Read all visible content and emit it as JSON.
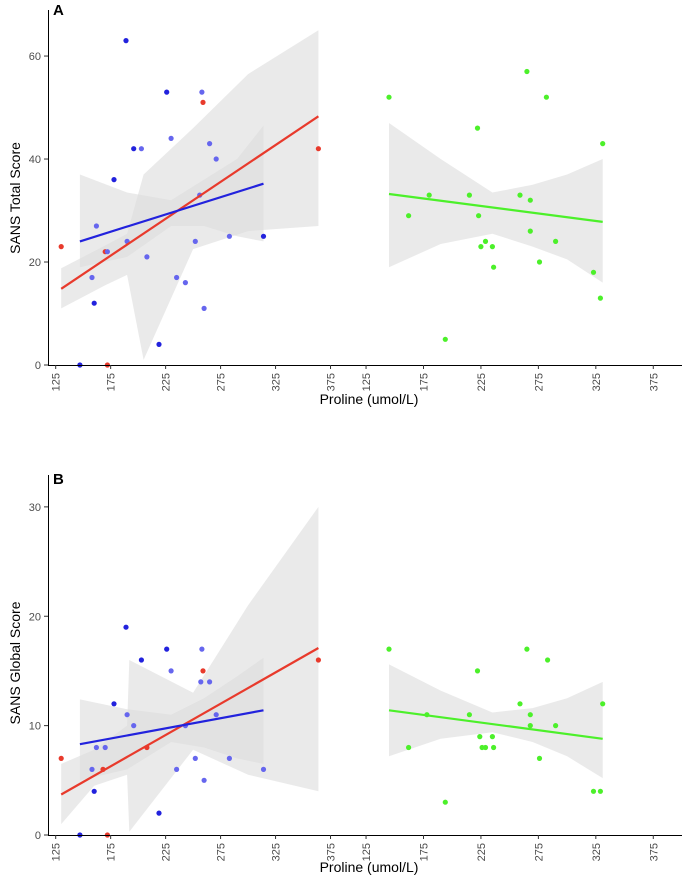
{
  "chart_data": [
    {
      "panel": "A",
      "type": "scatter",
      "xlabel": "Proline (umol/L)",
      "ylabel": "SANS Total Score",
      "xlim": [
        118,
        400
      ],
      "ylim": [
        0,
        67
      ],
      "xticks": [
        125,
        175,
        225,
        275,
        325,
        375
      ],
      "yticks": [
        0,
        20,
        40,
        60
      ],
      "colors": {
        "blue": "#2222dd",
        "lavender": "#6666ee",
        "red": "#e83a2c",
        "green": "#4cf02a",
        "band": "#dcdcdc"
      },
      "left": {
        "points": [
          {
            "x": 130,
            "y": 23,
            "c": "red"
          },
          {
            "x": 147,
            "y": 0,
            "c": "blue"
          },
          {
            "x": 158,
            "y": 17,
            "c": "lavender"
          },
          {
            "x": 160,
            "y": 12,
            "c": "blue"
          },
          {
            "x": 162,
            "y": 27,
            "c": "lavender"
          },
          {
            "x": 170,
            "y": 22,
            "c": "red"
          },
          {
            "x": 172,
            "y": 22,
            "c": "lavender"
          },
          {
            "x": 172,
            "y": 0,
            "c": "red"
          },
          {
            "x": 178,
            "y": 36,
            "c": "blue"
          },
          {
            "x": 189,
            "y": 63,
            "c": "blue"
          },
          {
            "x": 190,
            "y": 24,
            "c": "lavender"
          },
          {
            "x": 196,
            "y": 42,
            "c": "blue"
          },
          {
            "x": 203,
            "y": 42,
            "c": "lavender"
          },
          {
            "x": 208,
            "y": 21,
            "c": "lavender"
          },
          {
            "x": 219,
            "y": 4,
            "c": "blue"
          },
          {
            "x": 226,
            "y": 53,
            "c": "blue"
          },
          {
            "x": 230,
            "y": 44,
            "c": "lavender"
          },
          {
            "x": 235,
            "y": 17,
            "c": "lavender"
          },
          {
            "x": 243,
            "y": 16,
            "c": "lavender"
          },
          {
            "x": 252,
            "y": 24,
            "c": "lavender"
          },
          {
            "x": 256,
            "y": 33,
            "c": "lavender"
          },
          {
            "x": 258,
            "y": 53,
            "c": "lavender"
          },
          {
            "x": 259,
            "y": 51,
            "c": "red"
          },
          {
            "x": 260,
            "y": 11,
            "c": "lavender"
          },
          {
            "x": 265,
            "y": 43,
            "c": "lavender"
          },
          {
            "x": 271,
            "y": 40,
            "c": "lavender"
          },
          {
            "x": 283,
            "y": 25,
            "c": "lavender"
          },
          {
            "x": 314,
            "y": 25,
            "c": "blue"
          },
          {
            "x": 364,
            "y": 42,
            "c": "red"
          }
        ],
        "fits": [
          {
            "c": "red",
            "x0": 130,
            "y0": 14.8,
            "x1": 364,
            "y1": 48.3,
            "band": [
              [
                130,
                11.0,
                18.8
              ],
              [
                170,
                15.5,
                23.2
              ],
              [
                190,
                17.5,
                25.5
              ],
              [
                205,
                1.0,
                37.0
              ],
              [
                250,
                22.5,
                46.0
              ],
              [
                300,
                26.0,
                56.5
              ],
              [
                364,
                27.0,
                65.0
              ]
            ]
          },
          {
            "c": "blue",
            "x0": 147,
            "y0": 24.0,
            "x1": 314,
            "y1": 35.2,
            "band": [
              [
                147,
                19.0,
                37.0
              ],
              [
                190,
                21.0,
                33.5
              ],
              [
                230,
                27.0,
                32.0
              ],
              [
                260,
                27.0,
                36.0
              ],
              [
                290,
                25.0,
                40.0
              ],
              [
                314,
                24.0,
                46.5
              ]
            ]
          }
        ]
      },
      "right": {
        "points": [
          {
            "x": 145,
            "y": 52,
            "c": "green"
          },
          {
            "x": 162,
            "y": 29,
            "c": "green"
          },
          {
            "x": 180,
            "y": 33,
            "c": "green"
          },
          {
            "x": 194,
            "y": 5,
            "c": "green"
          },
          {
            "x": 215,
            "y": 33,
            "c": "green"
          },
          {
            "x": 222,
            "y": 46,
            "c": "green"
          },
          {
            "x": 223,
            "y": 29,
            "c": "green"
          },
          {
            "x": 225,
            "y": 23,
            "c": "green"
          },
          {
            "x": 229,
            "y": 24,
            "c": "green"
          },
          {
            "x": 235,
            "y": 23,
            "c": "green"
          },
          {
            "x": 236,
            "y": 19,
            "c": "green"
          },
          {
            "x": 259,
            "y": 33,
            "c": "green"
          },
          {
            "x": 265,
            "y": 57,
            "c": "green"
          },
          {
            "x": 268,
            "y": 32,
            "c": "green"
          },
          {
            "x": 268,
            "y": 26,
            "c": "green"
          },
          {
            "x": 276,
            "y": 20,
            "c": "green"
          },
          {
            "x": 282,
            "y": 52,
            "c": "green"
          },
          {
            "x": 290,
            "y": 24,
            "c": "green"
          },
          {
            "x": 323,
            "y": 18,
            "c": "green"
          },
          {
            "x": 329,
            "y": 13,
            "c": "green"
          },
          {
            "x": 331,
            "y": 43,
            "c": "green"
          }
        ],
        "fits": [
          {
            "c": "green",
            "x0": 145,
            "y0": 33.2,
            "x1": 331,
            "y1": 27.8,
            "band": [
              [
                145,
                19.0,
                47.0
              ],
              [
                190,
                23.5,
                40.0
              ],
              [
                235,
                25.5,
                33.5
              ],
              [
                270,
                23.0,
                35.0
              ],
              [
                300,
                20.5,
                37.0
              ],
              [
                331,
                16.0,
                40.0
              ]
            ]
          }
        ]
      }
    },
    {
      "panel": "B",
      "type": "scatter",
      "xlabel": "Proline (umol/L)",
      "ylabel": "SANS Global Score",
      "xlim": [
        118,
        400
      ],
      "ylim": [
        0,
        32
      ],
      "xticks": [
        125,
        175,
        225,
        275,
        325,
        375
      ],
      "yticks": [
        0,
        10,
        20,
        30
      ],
      "colors": {
        "blue": "#2222dd",
        "lavender": "#6666ee",
        "red": "#e83a2c",
        "green": "#4cf02a",
        "band": "#dcdcdc"
      },
      "left": {
        "points": [
          {
            "x": 130,
            "y": 7,
            "c": "red"
          },
          {
            "x": 147,
            "y": 0,
            "c": "blue"
          },
          {
            "x": 158,
            "y": 6,
            "c": "lavender"
          },
          {
            "x": 160,
            "y": 4,
            "c": "blue"
          },
          {
            "x": 162,
            "y": 8,
            "c": "lavender"
          },
          {
            "x": 168,
            "y": 6,
            "c": "red"
          },
          {
            "x": 170,
            "y": 8,
            "c": "lavender"
          },
          {
            "x": 172,
            "y": 0,
            "c": "red"
          },
          {
            "x": 178,
            "y": 12,
            "c": "blue"
          },
          {
            "x": 189,
            "y": 19,
            "c": "blue"
          },
          {
            "x": 190,
            "y": 11,
            "c": "lavender"
          },
          {
            "x": 196,
            "y": 10,
            "c": "lavender"
          },
          {
            "x": 203,
            "y": 16,
            "c": "blue"
          },
          {
            "x": 208,
            "y": 8,
            "c": "red"
          },
          {
            "x": 219,
            "y": 2,
            "c": "blue"
          },
          {
            "x": 226,
            "y": 17,
            "c": "blue"
          },
          {
            "x": 230,
            "y": 15,
            "c": "lavender"
          },
          {
            "x": 235,
            "y": 6,
            "c": "lavender"
          },
          {
            "x": 243,
            "y": 10,
            "c": "lavender"
          },
          {
            "x": 252,
            "y": 7,
            "c": "lavender"
          },
          {
            "x": 257,
            "y": 14,
            "c": "lavender"
          },
          {
            "x": 258,
            "y": 17,
            "c": "lavender"
          },
          {
            "x": 259,
            "y": 15,
            "c": "red"
          },
          {
            "x": 260,
            "y": 5,
            "c": "lavender"
          },
          {
            "x": 265,
            "y": 14,
            "c": "lavender"
          },
          {
            "x": 271,
            "y": 11,
            "c": "lavender"
          },
          {
            "x": 283,
            "y": 7,
            "c": "lavender"
          },
          {
            "x": 314,
            "y": 6,
            "c": "lavender"
          },
          {
            "x": 364,
            "y": 16,
            "c": "red"
          }
        ],
        "fits": [
          {
            "c": "red",
            "x0": 130,
            "y0": 3.7,
            "x1": 364,
            "y1": 17.1,
            "band": [
              [
                130,
                1.0,
                6.5
              ],
              [
                160,
                4.5,
                7.8
              ],
              [
                190,
                5.5,
                10.0
              ],
              [
                192,
                0.3,
                16.0
              ],
              [
                250,
                7.8,
                13.0
              ],
              [
                300,
                5.5,
                21.0
              ],
              [
                364,
                4.0,
                30.0
              ]
            ]
          },
          {
            "c": "blue",
            "x0": 147,
            "y0": 8.3,
            "x1": 314,
            "y1": 11.4,
            "band": [
              [
                147,
                5.0,
                12.4
              ],
              [
                190,
                6.0,
                11.5
              ],
              [
                230,
                8.5,
                11.0
              ],
              [
                260,
                8.0,
                12.5
              ],
              [
                290,
                7.0,
                14.5
              ],
              [
                314,
                6.5,
                16.2
              ]
            ]
          }
        ]
      },
      "right": {
        "points": [
          {
            "x": 145,
            "y": 17,
            "c": "green"
          },
          {
            "x": 162,
            "y": 8,
            "c": "green"
          },
          {
            "x": 178,
            "y": 11,
            "c": "green"
          },
          {
            "x": 194,
            "y": 3,
            "c": "green"
          },
          {
            "x": 215,
            "y": 11,
            "c": "green"
          },
          {
            "x": 222,
            "y": 15,
            "c": "green"
          },
          {
            "x": 224,
            "y": 9,
            "c": "green"
          },
          {
            "x": 226,
            "y": 8,
            "c": "green"
          },
          {
            "x": 229,
            "y": 8,
            "c": "green"
          },
          {
            "x": 235,
            "y": 9,
            "c": "green"
          },
          {
            "x": 236,
            "y": 8,
            "c": "green"
          },
          {
            "x": 259,
            "y": 12,
            "c": "green"
          },
          {
            "x": 265,
            "y": 17,
            "c": "green"
          },
          {
            "x": 268,
            "y": 11,
            "c": "green"
          },
          {
            "x": 268,
            "y": 10,
            "c": "green"
          },
          {
            "x": 276,
            "y": 7,
            "c": "green"
          },
          {
            "x": 283,
            "y": 16,
            "c": "green"
          },
          {
            "x": 290,
            "y": 10,
            "c": "green"
          },
          {
            "x": 323,
            "y": 4,
            "c": "green"
          },
          {
            "x": 329,
            "y": 4,
            "c": "green"
          },
          {
            "x": 331,
            "y": 12,
            "c": "green"
          }
        ],
        "fits": [
          {
            "c": "green",
            "x0": 145,
            "y0": 11.4,
            "x1": 331,
            "y1": 8.8,
            "band": [
              [
                145,
                7.2,
                15.6
              ],
              [
                190,
                8.8,
                13.2
              ],
              [
                235,
                9.4,
                11.2
              ],
              [
                270,
                8.5,
                11.6
              ],
              [
                300,
                7.2,
                12.5
              ],
              [
                331,
                5.2,
                14.0
              ]
            ]
          }
        ]
      }
    }
  ]
}
